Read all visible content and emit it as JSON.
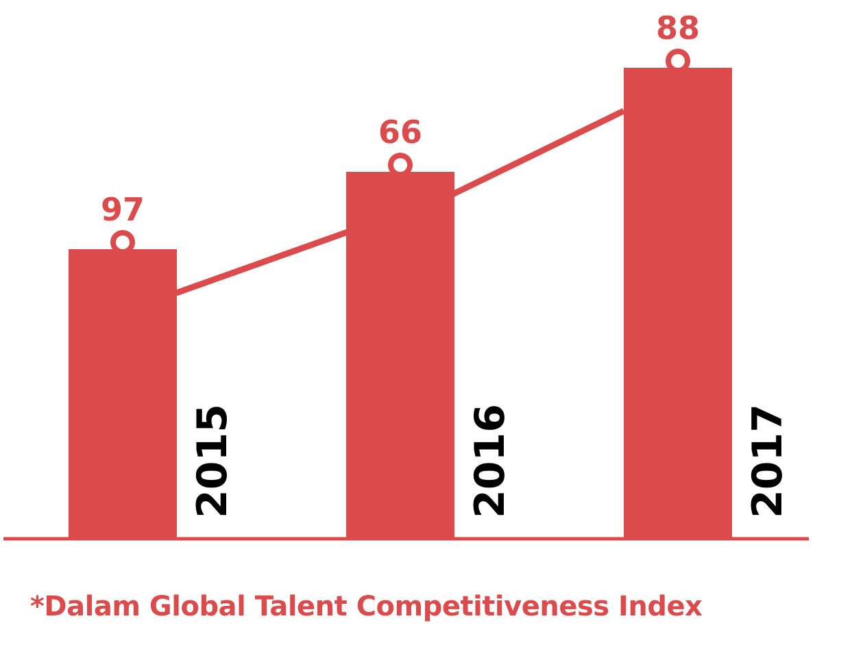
{
  "chart_data": {
    "type": "bar",
    "categories": [
      "2015",
      "2016",
      "2017"
    ],
    "values": [
      97,
      66,
      88
    ],
    "data_labels": [
      "97",
      "66",
      "88"
    ],
    "overlay": "line",
    "title": "",
    "xlabel": "",
    "ylabel": "",
    "grid": false,
    "legend": "none"
  },
  "footnote": "*Dalam Global Talent Competitiveness Index",
  "colors": {
    "accent": "#dd4a4b",
    "year_text": "#000000",
    "background": "#ffffff"
  }
}
